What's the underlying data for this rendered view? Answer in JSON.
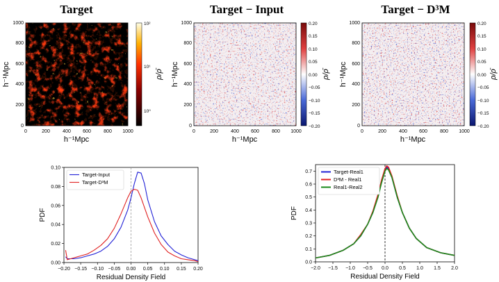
{
  "panels": {
    "target": {
      "title": "Target",
      "cbar_label": "ρ/ρ̄",
      "cbar_ticks": [
        "10²",
        "10¹",
        "10⁰"
      ]
    },
    "diff_input": {
      "title": "Target − Input"
    },
    "diff_d3m": {
      "title": "Target − D³M"
    },
    "map_axis_label": "h⁻¹Mpc",
    "map_ticks": [
      "0",
      "200",
      "400",
      "600",
      "800",
      "1000"
    ],
    "diff_cbar_ticks": [
      "0.20",
      "0.15",
      "0.10",
      "0.05",
      "0.00",
      "−0.05",
      "−0.10",
      "−0.15",
      "−0.20"
    ]
  },
  "colors": {
    "blue": "#1f1fd6",
    "red": "#e02020",
    "green": "#1a8a1a",
    "hot": "#cc2200",
    "diverging_pos": "#b2182b",
    "diverging_neg": "#2040b0"
  },
  "chart_data": [
    {
      "type": "line",
      "xlabel": "Residual Density Field",
      "ylabel": "PDF",
      "xlim": [
        -0.2,
        0.2
      ],
      "ylim": [
        0,
        0.1
      ],
      "xticks": [
        "−0.20",
        "−0.15",
        "−0.10",
        "−0.05",
        "0.00",
        "0.05",
        "0.10",
        "0.15",
        "0.20"
      ],
      "yticks": [
        "0.00",
        "0.02",
        "0.04",
        "0.06",
        "0.08",
        "0.10"
      ],
      "vline": 0.0,
      "legend_position": "top-left",
      "series": [
        {
          "name": "Target-Input",
          "color": "#1f1fd6",
          "x": [
            -0.195,
            -0.19,
            -0.17,
            -0.15,
            -0.13,
            -0.11,
            -0.09,
            -0.07,
            -0.05,
            -0.03,
            -0.01,
            0.0,
            0.01,
            0.02,
            0.03,
            0.04,
            0.05,
            0.07,
            0.09,
            0.11,
            0.13,
            0.15,
            0.17,
            0.19,
            0.2
          ],
          "y": [
            0.006,
            0.004,
            0.004,
            0.005,
            0.007,
            0.009,
            0.012,
            0.017,
            0.025,
            0.037,
            0.055,
            0.068,
            0.083,
            0.095,
            0.094,
            0.083,
            0.066,
            0.043,
            0.028,
            0.019,
            0.012,
            0.008,
            0.005,
            0.003,
            0.002
          ]
        },
        {
          "name": "Target-D³M",
          "color": "#e02020",
          "x": [
            -0.195,
            -0.19,
            -0.17,
            -0.15,
            -0.13,
            -0.11,
            -0.09,
            -0.07,
            -0.05,
            -0.03,
            -0.01,
            0.0,
            0.01,
            0.02,
            0.03,
            0.05,
            0.07,
            0.09,
            0.11,
            0.13,
            0.15,
            0.17,
            0.19,
            0.2
          ],
          "y": [
            0.013,
            0.003,
            0.005,
            0.007,
            0.009,
            0.013,
            0.018,
            0.025,
            0.036,
            0.051,
            0.068,
            0.075,
            0.077,
            0.076,
            0.068,
            0.048,
            0.031,
            0.019,
            0.011,
            0.007,
            0.004,
            0.003,
            0.002,
            0.001
          ]
        }
      ]
    },
    {
      "type": "line",
      "xlabel": "Residual Density Field",
      "ylabel": "PDF",
      "xlim": [
        -2.0,
        2.0
      ],
      "ylim": [
        0,
        0.75
      ],
      "xticks": [
        "−2.0",
        "−1.5",
        "−1.0",
        "−0.5",
        "0.0",
        "0.5",
        "1.0",
        "1.5",
        "2.0"
      ],
      "yticks": [
        "0.0",
        "0.1",
        "0.2",
        "0.3",
        "0.4",
        "0.5",
        "0.6",
        "0.7"
      ],
      "vline": 0.0,
      "legend_position": "top-left",
      "series": [
        {
          "name": "Target-Real1",
          "color": "#1f1fd6",
          "x": [
            -2.0,
            -1.6,
            -1.2,
            -0.9,
            -0.7,
            -0.5,
            -0.35,
            -0.2,
            -0.1,
            0.0,
            0.05,
            0.1,
            0.2,
            0.35,
            0.5,
            0.7,
            0.9,
            1.2,
            1.6,
            2.0
          ],
          "y": [
            0.03,
            0.05,
            0.09,
            0.14,
            0.2,
            0.29,
            0.38,
            0.51,
            0.62,
            0.71,
            0.73,
            0.72,
            0.65,
            0.5,
            0.38,
            0.26,
            0.18,
            0.11,
            0.07,
            0.05
          ]
        },
        {
          "name": "D³M - Real1",
          "color": "#e02020",
          "x": [
            -2.0,
            -1.6,
            -1.2,
            -0.9,
            -0.7,
            -0.5,
            -0.35,
            -0.2,
            -0.1,
            0.0,
            0.05,
            0.1,
            0.2,
            0.35,
            0.5,
            0.7,
            0.9,
            1.2,
            1.6,
            2.0
          ],
          "y": [
            0.03,
            0.05,
            0.09,
            0.14,
            0.21,
            0.29,
            0.39,
            0.52,
            0.63,
            0.72,
            0.74,
            0.73,
            0.66,
            0.51,
            0.38,
            0.26,
            0.18,
            0.11,
            0.07,
            0.05
          ]
        },
        {
          "name": "Real1-Real2",
          "color": "#1a8a1a",
          "x": [
            -2.0,
            -1.6,
            -1.2,
            -0.9,
            -0.7,
            -0.5,
            -0.35,
            -0.2,
            -0.1,
            0.0,
            0.05,
            0.1,
            0.2,
            0.35,
            0.5,
            0.7,
            0.9,
            1.2,
            1.6,
            2.0
          ],
          "y": [
            0.03,
            0.05,
            0.09,
            0.14,
            0.2,
            0.29,
            0.38,
            0.5,
            0.61,
            0.7,
            0.72,
            0.71,
            0.65,
            0.5,
            0.38,
            0.26,
            0.18,
            0.11,
            0.07,
            0.05
          ]
        }
      ]
    }
  ]
}
